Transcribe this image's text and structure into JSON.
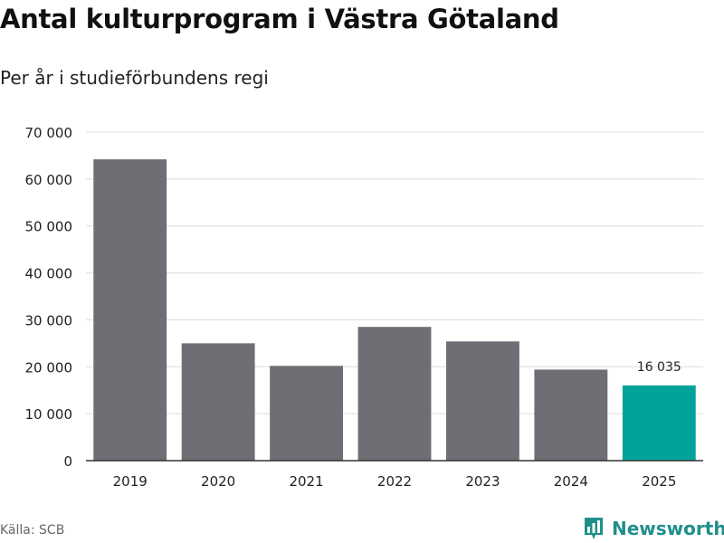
{
  "title": "Antal kulturprogram i Västra Götaland",
  "subtitle": "Per år i studieförbundens regi",
  "source": "Källa: SCB",
  "brand": {
    "name": "Newsworthy",
    "icon": "bar-chart-logo-icon",
    "color": "#1f8f8a"
  },
  "chart_data": {
    "type": "bar",
    "categories": [
      "2019",
      "2020",
      "2021",
      "2022",
      "2023",
      "2024",
      "2025"
    ],
    "values": [
      64200,
      25000,
      20200,
      28500,
      25400,
      19400,
      16035
    ],
    "data_labels": {
      "2025": "16 035"
    },
    "colors": {
      "default": "#6f6e74",
      "highlight": "#00a39a"
    },
    "highlight": "2025",
    "ylim": [
      0,
      70000
    ],
    "yticks": [
      0,
      10000,
      20000,
      30000,
      40000,
      50000,
      60000,
      70000
    ],
    "ytick_labels": [
      "0",
      "10 000",
      "20 000",
      "30 000",
      "40 000",
      "50 000",
      "60 000",
      "70 000"
    ],
    "grid": true,
    "title": "Antal kulturprogram i Västra Götaland",
    "xlabel": "",
    "ylabel": ""
  }
}
